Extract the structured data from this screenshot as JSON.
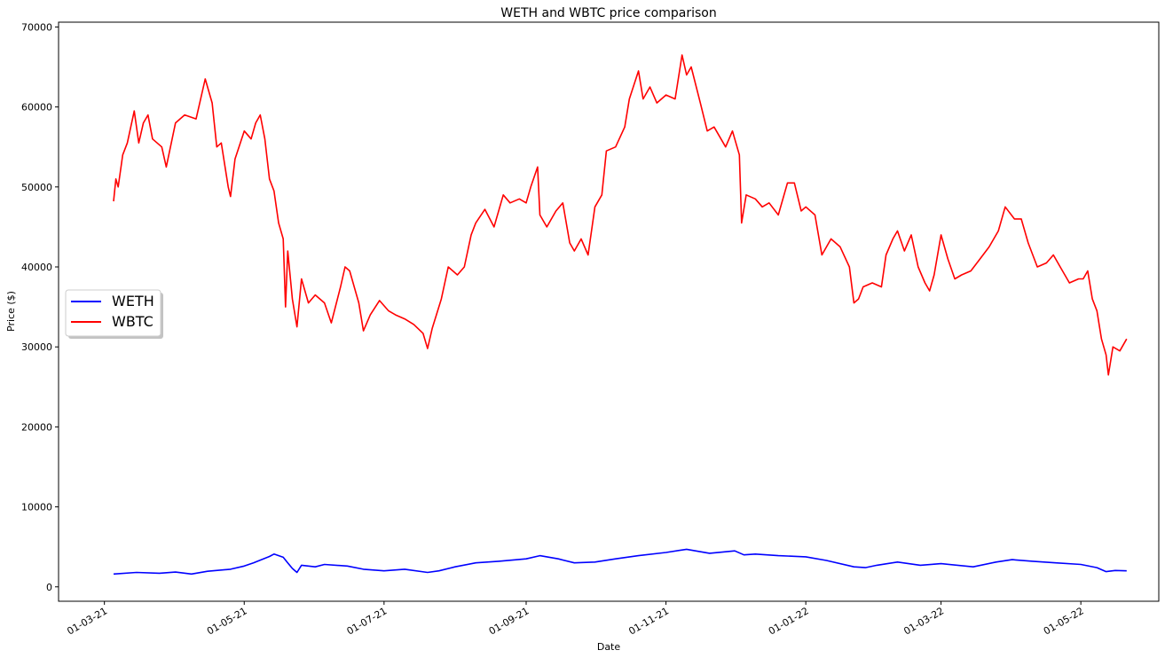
{
  "chart_data": {
    "type": "line",
    "title": "WETH and WBTC price comparison",
    "xlabel": "Date",
    "ylabel": "Price ($)",
    "xlim": [
      "2021-02-09",
      "2022-06-04"
    ],
    "ylim": [
      -1800,
      70600
    ],
    "x_ticks": [
      {
        "date": "2021-03-01",
        "label": "01-03-21"
      },
      {
        "date": "2021-05-01",
        "label": "01-05-21"
      },
      {
        "date": "2021-07-01",
        "label": "01-07-21"
      },
      {
        "date": "2021-09-01",
        "label": "01-09-21"
      },
      {
        "date": "2021-11-01",
        "label": "01-11-21"
      },
      {
        "date": "2022-01-01",
        "label": "01-01-22"
      },
      {
        "date": "2022-03-01",
        "label": "01-03-22"
      },
      {
        "date": "2022-05-01",
        "label": "01-05-22"
      }
    ],
    "y_ticks": [
      0,
      10000,
      20000,
      30000,
      40000,
      50000,
      60000,
      70000
    ],
    "legend_position": "center-left",
    "grid": false,
    "series": [
      {
        "name": "WETH",
        "color": "#0000ff",
        "points": [
          [
            "2021-03-05",
            1600
          ],
          [
            "2021-03-15",
            1800
          ],
          [
            "2021-03-25",
            1700
          ],
          [
            "2021-04-01",
            1850
          ],
          [
            "2021-04-08",
            1600
          ],
          [
            "2021-04-15",
            1950
          ],
          [
            "2021-04-25",
            2200
          ],
          [
            "2021-05-01",
            2600
          ],
          [
            "2021-05-05",
            3000
          ],
          [
            "2021-05-12",
            3800
          ],
          [
            "2021-05-14",
            4100
          ],
          [
            "2021-05-18",
            3700
          ],
          [
            "2021-05-20",
            3000
          ],
          [
            "2021-05-22",
            2300
          ],
          [
            "2021-05-24",
            1800
          ],
          [
            "2021-05-26",
            2700
          ],
          [
            "2021-06-01",
            2500
          ],
          [
            "2021-06-05",
            2800
          ],
          [
            "2021-06-15",
            2600
          ],
          [
            "2021-06-22",
            2200
          ],
          [
            "2021-07-01",
            2000
          ],
          [
            "2021-07-10",
            2200
          ],
          [
            "2021-07-20",
            1800
          ],
          [
            "2021-07-25",
            2000
          ],
          [
            "2021-08-01",
            2500
          ],
          [
            "2021-08-10",
            3000
          ],
          [
            "2021-08-20",
            3200
          ],
          [
            "2021-09-01",
            3500
          ],
          [
            "2021-09-07",
            3900
          ],
          [
            "2021-09-15",
            3500
          ],
          [
            "2021-09-22",
            3000
          ],
          [
            "2021-10-01",
            3100
          ],
          [
            "2021-10-10",
            3500
          ],
          [
            "2021-10-20",
            3900
          ],
          [
            "2021-11-01",
            4300
          ],
          [
            "2021-11-10",
            4700
          ],
          [
            "2021-11-20",
            4200
          ],
          [
            "2021-12-01",
            4500
          ],
          [
            "2021-12-05",
            4000
          ],
          [
            "2021-12-10",
            4100
          ],
          [
            "2021-12-20",
            3900
          ],
          [
            "2022-01-01",
            3750
          ],
          [
            "2022-01-10",
            3300
          ],
          [
            "2022-01-22",
            2500
          ],
          [
            "2022-01-27",
            2400
          ],
          [
            "2022-02-01",
            2700
          ],
          [
            "2022-02-10",
            3100
          ],
          [
            "2022-02-20",
            2700
          ],
          [
            "2022-03-01",
            2900
          ],
          [
            "2022-03-15",
            2500
          ],
          [
            "2022-03-25",
            3100
          ],
          [
            "2022-04-01",
            3400
          ],
          [
            "2022-04-10",
            3200
          ],
          [
            "2022-04-20",
            3000
          ],
          [
            "2022-05-01",
            2800
          ],
          [
            "2022-05-08",
            2400
          ],
          [
            "2022-05-12",
            1900
          ],
          [
            "2022-05-16",
            2050
          ],
          [
            "2022-05-21",
            2000
          ]
        ]
      },
      {
        "name": "WBTC",
        "color": "#ff0000",
        "points": [
          [
            "2021-03-05",
            48200
          ],
          [
            "2021-03-06",
            51000
          ],
          [
            "2021-03-07",
            50000
          ],
          [
            "2021-03-09",
            54000
          ],
          [
            "2021-03-11",
            55500
          ],
          [
            "2021-03-14",
            59500
          ],
          [
            "2021-03-16",
            55500
          ],
          [
            "2021-03-18",
            58000
          ],
          [
            "2021-03-20",
            59000
          ],
          [
            "2021-03-22",
            56000
          ],
          [
            "2021-03-26",
            55000
          ],
          [
            "2021-03-28",
            52500
          ],
          [
            "2021-04-01",
            58000
          ],
          [
            "2021-04-05",
            59000
          ],
          [
            "2021-04-10",
            58500
          ],
          [
            "2021-04-14",
            63500
          ],
          [
            "2021-04-17",
            60500
          ],
          [
            "2021-04-19",
            55000
          ],
          [
            "2021-04-21",
            55500
          ],
          [
            "2021-04-24",
            50000
          ],
          [
            "2021-04-25",
            48800
          ],
          [
            "2021-04-27",
            53500
          ],
          [
            "2021-05-01",
            57000
          ],
          [
            "2021-05-04",
            56000
          ],
          [
            "2021-05-06",
            58000
          ],
          [
            "2021-05-08",
            59000
          ],
          [
            "2021-05-10",
            56000
          ],
          [
            "2021-05-12",
            51000
          ],
          [
            "2021-05-14",
            49500
          ],
          [
            "2021-05-16",
            45500
          ],
          [
            "2021-05-18",
            43500
          ],
          [
            "2021-05-19",
            35000
          ],
          [
            "2021-05-20",
            42000
          ],
          [
            "2021-05-22",
            36000
          ],
          [
            "2021-05-24",
            32500
          ],
          [
            "2021-05-26",
            38500
          ],
          [
            "2021-05-29",
            35500
          ],
          [
            "2021-06-01",
            36500
          ],
          [
            "2021-06-05",
            35500
          ],
          [
            "2021-06-08",
            33000
          ],
          [
            "2021-06-12",
            37500
          ],
          [
            "2021-06-14",
            40000
          ],
          [
            "2021-06-16",
            39500
          ],
          [
            "2021-06-20",
            35500
          ],
          [
            "2021-06-22",
            32000
          ],
          [
            "2021-06-25",
            34000
          ],
          [
            "2021-06-29",
            35800
          ],
          [
            "2021-07-03",
            34500
          ],
          [
            "2021-07-06",
            34000
          ],
          [
            "2021-07-10",
            33500
          ],
          [
            "2021-07-14",
            32800
          ],
          [
            "2021-07-18",
            31700
          ],
          [
            "2021-07-20",
            29800
          ],
          [
            "2021-07-22",
            32300
          ],
          [
            "2021-07-26",
            36000
          ],
          [
            "2021-07-29",
            40000
          ],
          [
            "2021-08-02",
            39000
          ],
          [
            "2021-08-05",
            40000
          ],
          [
            "2021-08-08",
            44000
          ],
          [
            "2021-08-10",
            45500
          ],
          [
            "2021-08-14",
            47200
          ],
          [
            "2021-08-18",
            45000
          ],
          [
            "2021-08-22",
            49000
          ],
          [
            "2021-08-25",
            48000
          ],
          [
            "2021-08-29",
            48500
          ],
          [
            "2021-09-01",
            48000
          ],
          [
            "2021-09-03",
            50000
          ],
          [
            "2021-09-06",
            52500
          ],
          [
            "2021-09-07",
            46500
          ],
          [
            "2021-09-10",
            45000
          ],
          [
            "2021-09-14",
            47000
          ],
          [
            "2021-09-17",
            48000
          ],
          [
            "2021-09-20",
            43000
          ],
          [
            "2021-09-22",
            42000
          ],
          [
            "2021-09-25",
            43500
          ],
          [
            "2021-09-28",
            41500
          ],
          [
            "2021-10-01",
            47500
          ],
          [
            "2021-10-04",
            49000
          ],
          [
            "2021-10-06",
            54500
          ],
          [
            "2021-10-10",
            55000
          ],
          [
            "2021-10-14",
            57500
          ],
          [
            "2021-10-16",
            61000
          ],
          [
            "2021-10-20",
            64500
          ],
          [
            "2021-10-22",
            61000
          ],
          [
            "2021-10-25",
            62500
          ],
          [
            "2021-10-28",
            60500
          ],
          [
            "2021-11-01",
            61500
          ],
          [
            "2021-11-05",
            61000
          ],
          [
            "2021-11-08",
            66500
          ],
          [
            "2021-11-10",
            64000
          ],
          [
            "2021-11-12",
            65000
          ],
          [
            "2021-11-16",
            60500
          ],
          [
            "2021-11-19",
            57000
          ],
          [
            "2021-11-22",
            57500
          ],
          [
            "2021-11-25",
            56000
          ],
          [
            "2021-11-27",
            55000
          ],
          [
            "2021-11-30",
            57000
          ],
          [
            "2021-12-03",
            54000
          ],
          [
            "2021-12-04",
            45500
          ],
          [
            "2021-12-06",
            49000
          ],
          [
            "2021-12-10",
            48500
          ],
          [
            "2021-12-13",
            47500
          ],
          [
            "2021-12-16",
            48000
          ],
          [
            "2021-12-20",
            46500
          ],
          [
            "2021-12-24",
            50500
          ],
          [
            "2021-12-27",
            50500
          ],
          [
            "2021-12-30",
            47000
          ],
          [
            "2022-01-01",
            47500
          ],
          [
            "2022-01-05",
            46500
          ],
          [
            "2022-01-08",
            41500
          ],
          [
            "2022-01-12",
            43500
          ],
          [
            "2022-01-16",
            42500
          ],
          [
            "2022-01-20",
            40000
          ],
          [
            "2022-01-22",
            35500
          ],
          [
            "2022-01-24",
            36000
          ],
          [
            "2022-01-26",
            37500
          ],
          [
            "2022-01-30",
            38000
          ],
          [
            "2022-02-03",
            37500
          ],
          [
            "2022-02-05",
            41500
          ],
          [
            "2022-02-08",
            43500
          ],
          [
            "2022-02-10",
            44500
          ],
          [
            "2022-02-13",
            42000
          ],
          [
            "2022-02-16",
            44000
          ],
          [
            "2022-02-19",
            40000
          ],
          [
            "2022-02-22",
            38000
          ],
          [
            "2022-02-24",
            37000
          ],
          [
            "2022-02-26",
            39000
          ],
          [
            "2022-03-01",
            44000
          ],
          [
            "2022-03-04",
            41000
          ],
          [
            "2022-03-07",
            38500
          ],
          [
            "2022-03-10",
            39000
          ],
          [
            "2022-03-14",
            39500
          ],
          [
            "2022-03-18",
            41000
          ],
          [
            "2022-03-22",
            42500
          ],
          [
            "2022-03-26",
            44500
          ],
          [
            "2022-03-29",
            47500
          ],
          [
            "2022-04-02",
            46000
          ],
          [
            "2022-04-05",
            46000
          ],
          [
            "2022-04-08",
            43000
          ],
          [
            "2022-04-12",
            40000
          ],
          [
            "2022-04-16",
            40500
          ],
          [
            "2022-04-19",
            41500
          ],
          [
            "2022-04-22",
            40000
          ],
          [
            "2022-04-26",
            38000
          ],
          [
            "2022-04-30",
            38500
          ],
          [
            "2022-05-02",
            38500
          ],
          [
            "2022-05-04",
            39500
          ],
          [
            "2022-05-06",
            36000
          ],
          [
            "2022-05-08",
            34500
          ],
          [
            "2022-05-10",
            31000
          ],
          [
            "2022-05-12",
            29000
          ],
          [
            "2022-05-13",
            26500
          ],
          [
            "2022-05-15",
            30000
          ],
          [
            "2022-05-18",
            29500
          ],
          [
            "2022-05-21",
            31000
          ]
        ]
      }
    ]
  }
}
